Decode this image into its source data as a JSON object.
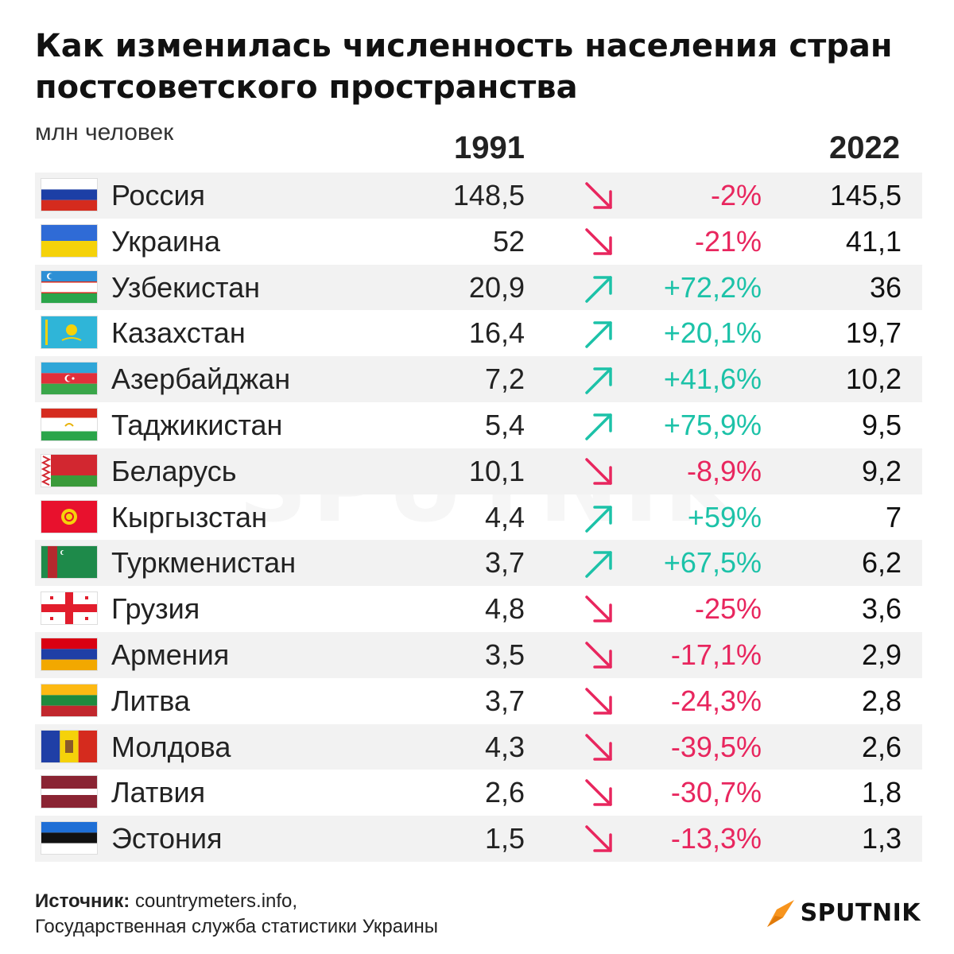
{
  "chart_data": {
    "type": "table",
    "title": "Как изменилась численность населения стран постсоветского пространства",
    "unit": "млн человек",
    "columns": [
      "1991",
      "2022"
    ],
    "rows": [
      {
        "country": "Россия",
        "v1991": "148,5",
        "change": "-2%",
        "trend": "down",
        "v2022": "145,5",
        "flag": "russia-flag"
      },
      {
        "country": "Украина",
        "v1991": "52",
        "change": "-21%",
        "trend": "down",
        "v2022": "41,1",
        "flag": "ukraine-flag"
      },
      {
        "country": "Узбекистан",
        "v1991": "20,9",
        "change": "+72,2%",
        "trend": "up",
        "v2022": "36",
        "flag": "uzbekistan-flag"
      },
      {
        "country": "Казахстан",
        "v1991": "16,4",
        "change": "+20,1%",
        "trend": "up",
        "v2022": "19,7",
        "flag": "kazakhstan-flag"
      },
      {
        "country": "Азербайджан",
        "v1991": "7,2",
        "change": "+41,6%",
        "trend": "up",
        "v2022": "10,2",
        "flag": "azerbaijan-flag"
      },
      {
        "country": "Таджикистан",
        "v1991": "5,4",
        "change": "+75,9%",
        "trend": "up",
        "v2022": "9,5",
        "flag": "tajikistan-flag"
      },
      {
        "country": "Беларусь",
        "v1991": "10,1",
        "change": "-8,9%",
        "trend": "down",
        "v2022": "9,2",
        "flag": "belarus-flag"
      },
      {
        "country": "Кыргызстан",
        "v1991": "4,4",
        "change": "+59%",
        "trend": "up",
        "v2022": "7",
        "flag": "kyrgyzstan-flag"
      },
      {
        "country": "Туркменистан",
        "v1991": "3,7",
        "change": "+67,5%",
        "trend": "up",
        "v2022": "6,2",
        "flag": "turkmenistan-flag"
      },
      {
        "country": "Грузия",
        "v1991": "4,8",
        "change": "-25%",
        "trend": "down",
        "v2022": "3,6",
        "flag": "georgia-flag"
      },
      {
        "country": "Армения",
        "v1991": "3,5",
        "change": "-17,1%",
        "trend": "down",
        "v2022": "2,9",
        "flag": "armenia-flag"
      },
      {
        "country": "Литва",
        "v1991": "3,7",
        "change": "-24,3%",
        "trend": "down",
        "v2022": "2,8",
        "flag": "lithuania-flag"
      },
      {
        "country": "Молдова",
        "v1991": "4,3",
        "change": "-39,5%",
        "trend": "down",
        "v2022": "2,6",
        "flag": "moldova-flag"
      },
      {
        "country": "Латвия",
        "v1991": "2,6",
        "change": "-30,7%",
        "trend": "down",
        "v2022": "1,8",
        "flag": "latvia-flag"
      },
      {
        "country": "Эстония",
        "v1991": "1,5",
        "change": "-13,3%",
        "trend": "down",
        "v2022": "1,3",
        "flag": "estonia-flag"
      }
    ]
  },
  "colors": {
    "up": "#1cc2a8",
    "down": "#e8265e",
    "row_shade": "#f2f2f2",
    "logo_orange": "#f7941d"
  },
  "source": {
    "label": "Источник:",
    "text": "countrymeters.info,",
    "text2": "Государственная служба статистики Украины"
  },
  "watermark": "SPUTNIK",
  "logo": {
    "text": "SPUTNIK",
    "icon": "sputnik-logo-icon"
  }
}
